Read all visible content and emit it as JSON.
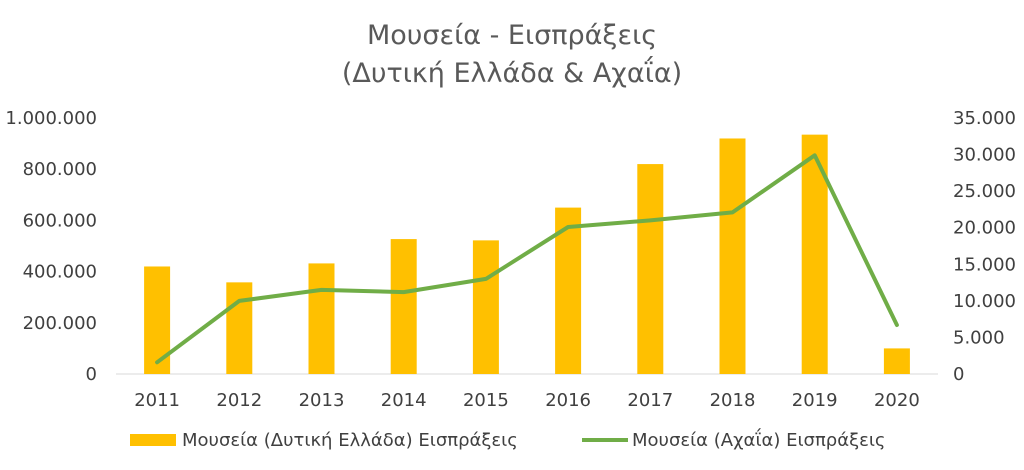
{
  "chart_data": {
    "type": "bar",
    "title_line1": "Μουσεία - Εισπράξεις",
    "title_line2": "(Δυτική Ελλάδα & Αχαΐα)",
    "categories": [
      "2011",
      "2012",
      "2013",
      "2014",
      "2015",
      "2016",
      "2017",
      "2018",
      "2019",
      "2020"
    ],
    "series": [
      {
        "name": "Μουσεία (Δυτική Ελλάδα) Εισπράξεις",
        "type": "bar",
        "axis": "left",
        "color": "#FFC000",
        "values": [
          420000,
          358000,
          432000,
          527000,
          522000,
          650000,
          820000,
          920000,
          935000,
          100000
        ]
      },
      {
        "name": "Μουσεία (Αχαΐα) Εισπράξεις",
        "type": "line",
        "axis": "right",
        "color": "#70AD47",
        "values": [
          1600,
          10000,
          11500,
          11200,
          13000,
          20100,
          21000,
          22100,
          29900,
          6700
        ]
      }
    ],
    "y_left": {
      "min": 0,
      "max": 1000000,
      "ticks": [
        "0",
        "200.000",
        "400.000",
        "600.000",
        "800.000",
        "1.000.000"
      ]
    },
    "y_right": {
      "min": 0,
      "max": 35000,
      "ticks": [
        "0",
        "5.000",
        "10.000",
        "15.000",
        "20.000",
        "25.000",
        "30.000",
        "35.000"
      ]
    },
    "grid": false,
    "legend_position": "bottom"
  }
}
